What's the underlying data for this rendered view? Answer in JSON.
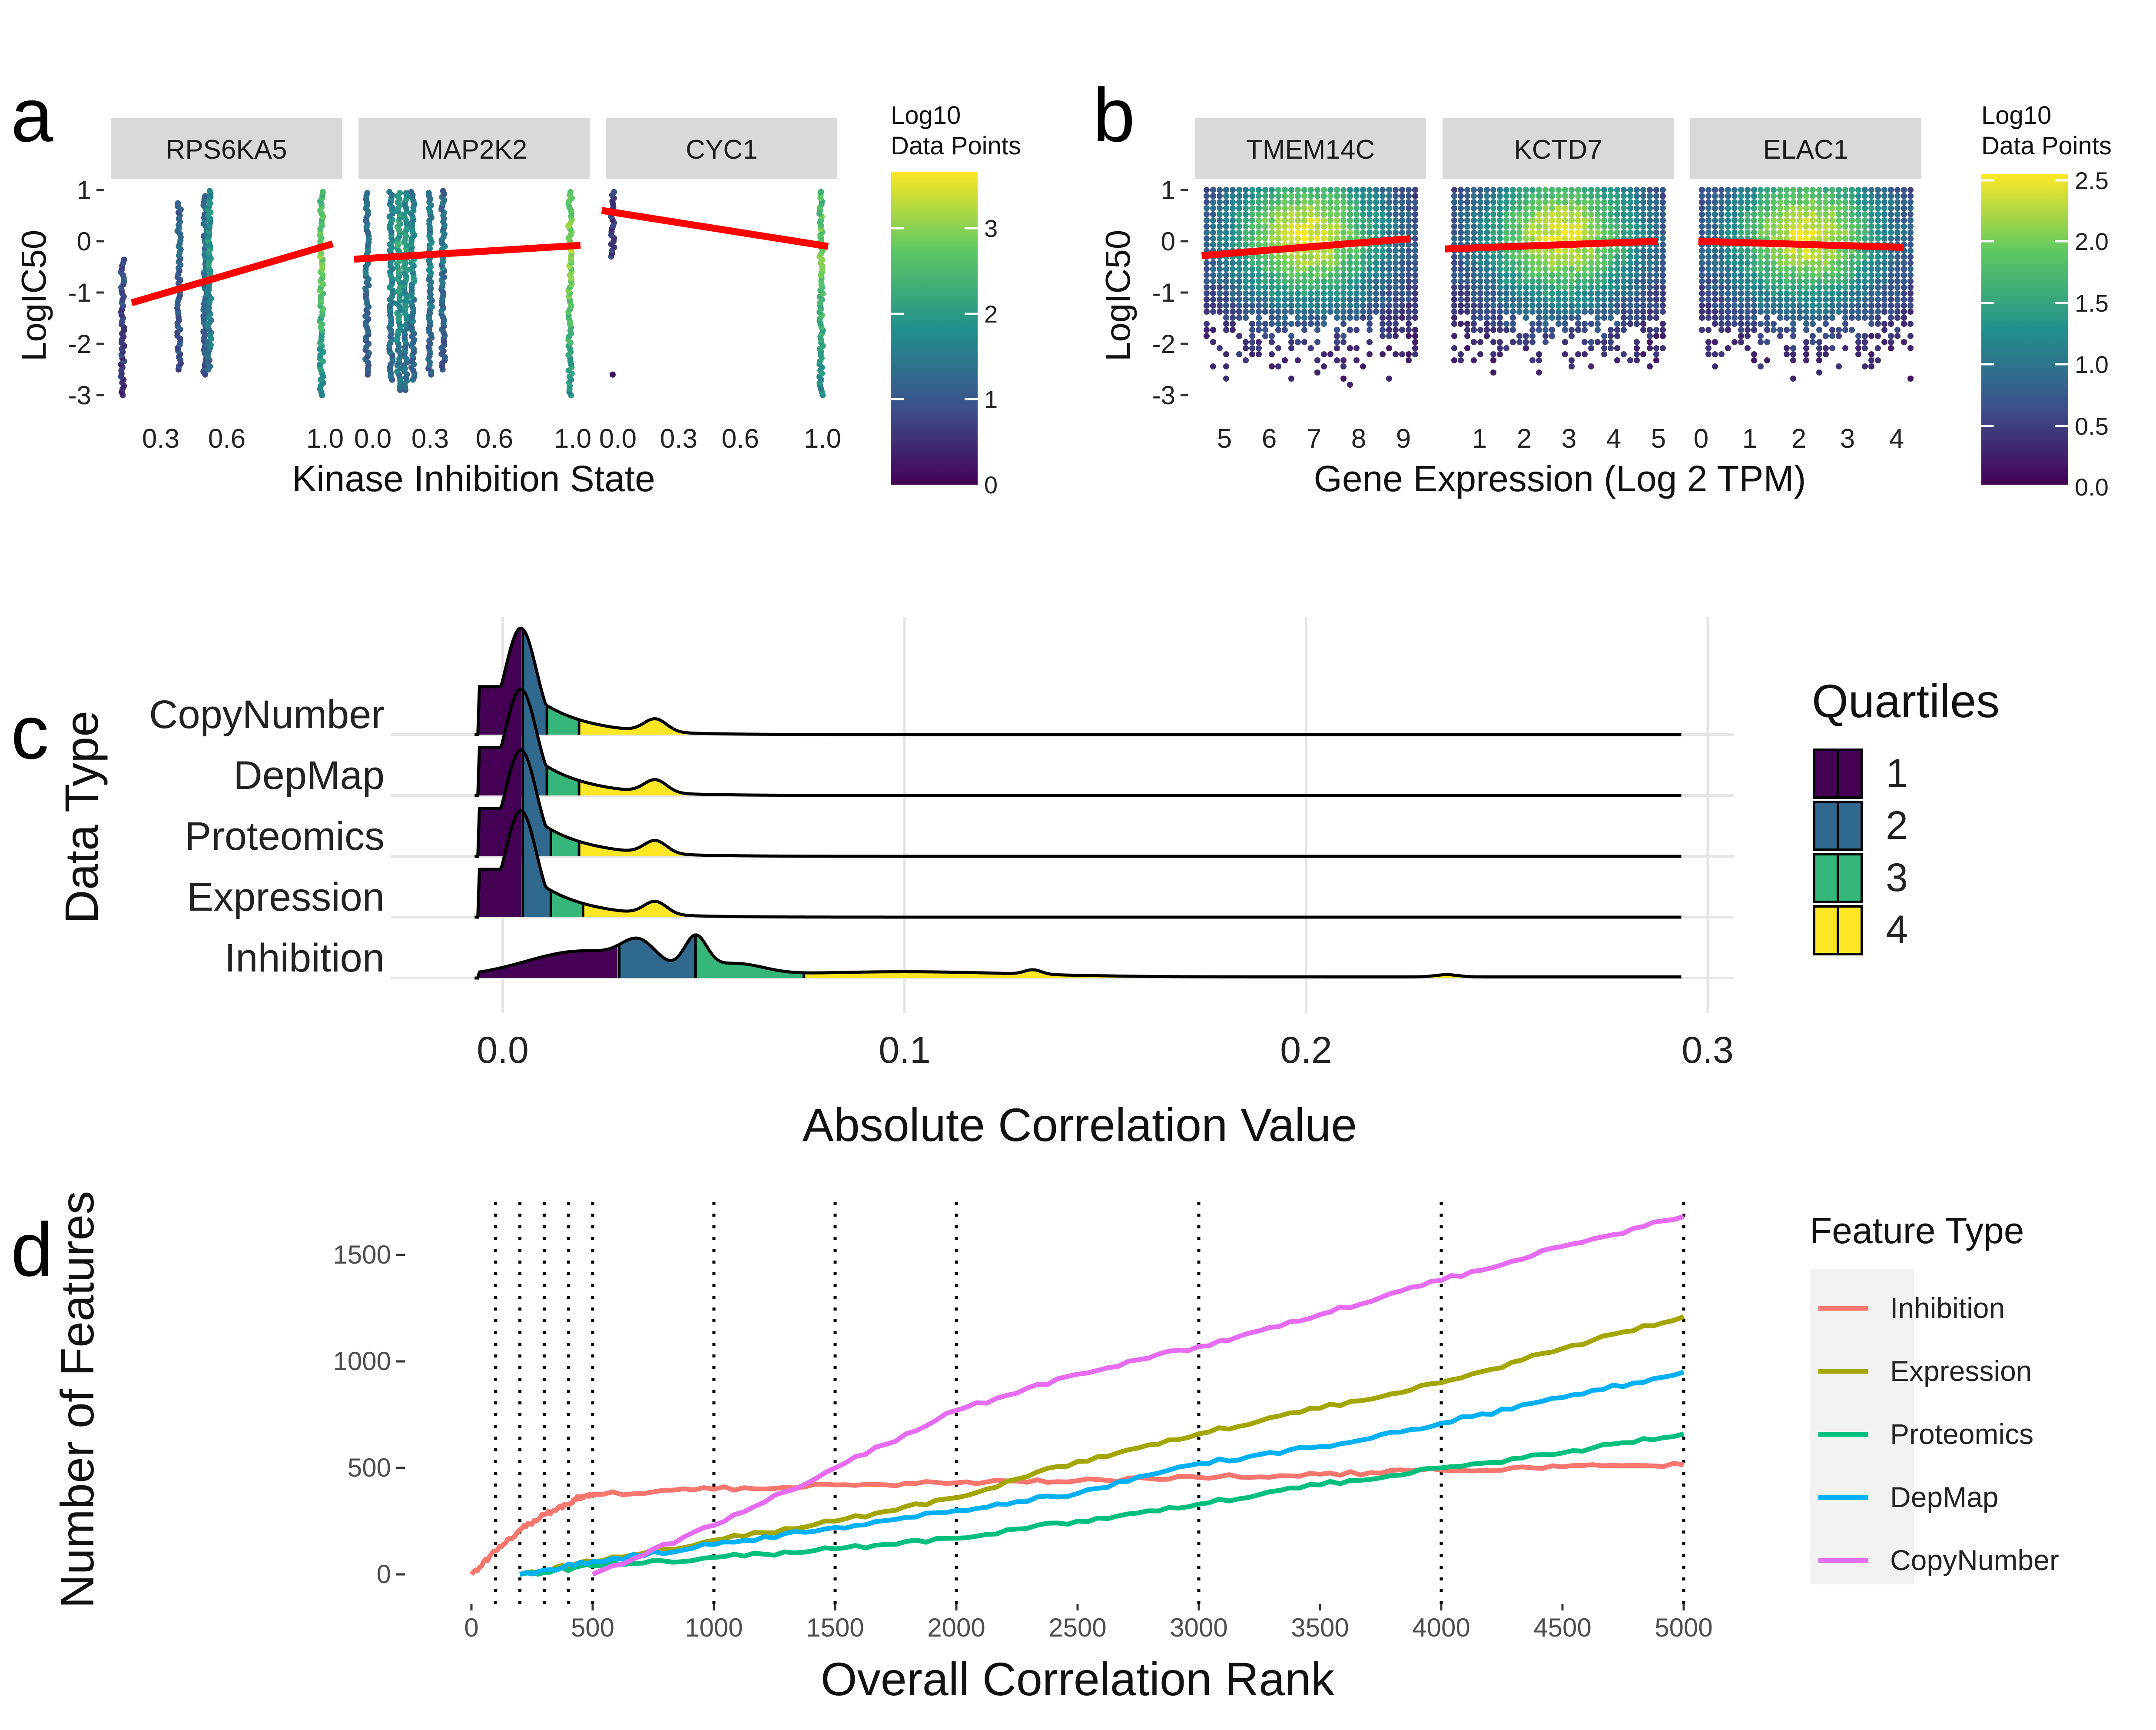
{
  "panel_labels": [
    "a",
    "b",
    "c",
    "d"
  ],
  "chart_data": [
    {
      "id": "a",
      "type": "scatter",
      "subtype": "hexbin",
      "facets": [
        "RPS6KA5",
        "MAP2K2",
        "CYC1"
      ],
      "xlabel": "Kinase Inhibition State",
      "ylabel": "LogIC50",
      "yticks": [
        1,
        0,
        -1,
        -2,
        -3
      ],
      "xticks": [
        [
          "0.3",
          "0.6",
          "1.0"
        ],
        [
          "0.0",
          "0.3",
          "0.6",
          "1.0"
        ],
        [
          "0.0",
          "0.3",
          "0.6",
          "1.0"
        ]
      ],
      "ylim": [
        -3.2,
        1.1
      ],
      "xlim": [
        0.0,
        1.05
      ],
      "trend_lines": [
        {
          "facet": "RPS6KA5",
          "x": [
            0.12,
            1.0
          ],
          "y": [
            -1.2,
            -0.05
          ]
        },
        {
          "facet": "MAP2K2",
          "x": [
            0.0,
            1.0
          ],
          "y": [
            -0.35,
            -0.08
          ]
        },
        {
          "facet": "CYC1",
          "x": [
            0.0,
            1.0
          ],
          "y": [
            0.6,
            -0.1
          ]
        }
      ],
      "colorbar": {
        "title": [
          "Log10",
          "Data Points"
        ],
        "ticks": [
          "3",
          "2",
          "1",
          "0"
        ],
        "min": 0,
        "max": 3.6
      },
      "colors": [
        "#440154",
        "#3b528b",
        "#21908c",
        "#5dc863",
        "#fde725"
      ]
    },
    {
      "id": "b",
      "type": "scatter",
      "subtype": "hexbin",
      "facets": [
        "TMEM14C",
        "KCTD7",
        "ELAC1"
      ],
      "xlabel": "Gene Expression (Log 2 TPM)",
      "ylabel": "LogIC50",
      "yticks": [
        1,
        0,
        -1,
        -2,
        -3
      ],
      "xticks": [
        [
          "5",
          "6",
          "7",
          "8",
          "9"
        ],
        [
          "1",
          "2",
          "3",
          "4",
          "5"
        ],
        [
          "0",
          "1",
          "2",
          "3",
          "4"
        ]
      ],
      "ylim": [
        -3.2,
        1.1
      ],
      "trend_lines": [
        {
          "facet": "TMEM14C",
          "x": [
            4.5,
            9.2
          ],
          "y": [
            -0.28,
            0.05
          ]
        },
        {
          "facet": "KCTD7",
          "x": [
            0.3,
            5.0
          ],
          "y": [
            -0.15,
            0.0
          ]
        },
        {
          "facet": "ELAC1",
          "x": [
            0.0,
            4.2
          ],
          "y": [
            0.0,
            -0.12
          ]
        }
      ],
      "colorbar": {
        "title": [
          "Log10",
          "Data Points"
        ],
        "ticks": [
          "2.5",
          "2.0",
          "1.5",
          "1.0",
          "0.5",
          "0.0"
        ],
        "min": 0,
        "max": 2.5
      }
    },
    {
      "id": "c",
      "type": "area",
      "subtype": "ridgeline",
      "xlabel": "Absolute Correlation Value",
      "ylabel": "Data Type",
      "categories": [
        "CopyNumber",
        "DepMap",
        "Proteomics",
        "Expression",
        "Inhibition"
      ],
      "xticks": [
        "0.0",
        "0.1",
        "0.2",
        "0.3"
      ],
      "xlim": [
        -0.008,
        0.305
      ],
      "quartile_breaks": {
        "CopyNumber": [
          0.005,
          0.011,
          0.019
        ],
        "DepMap": [
          0.005,
          0.011,
          0.019
        ],
        "Proteomics": [
          0.005,
          0.012,
          0.019
        ],
        "Expression": [
          0.005,
          0.012,
          0.02
        ],
        "Inhibition": [
          0.029,
          0.048,
          0.075
        ]
      },
      "legend": {
        "title": "Quartiles",
        "items": [
          "1",
          "2",
          "3",
          "4"
        ],
        "colors": [
          "#440154",
          "#31688e",
          "#35b779",
          "#fde725"
        ]
      }
    },
    {
      "id": "d",
      "type": "line",
      "xlabel": "Overall Correlation Rank",
      "ylabel": "Number of Features",
      "xticks": [
        "0",
        "500",
        "1000",
        "1500",
        "2000",
        "2500",
        "3000",
        "3500",
        "4000",
        "4500",
        "5000"
      ],
      "yticks": [
        "1500",
        "1000",
        "500",
        "0"
      ],
      "xlim": [
        0,
        5000
      ],
      "ylim": [
        -60,
        1750
      ],
      "vlines": [
        100,
        200,
        300,
        400,
        500,
        1000,
        1500,
        2000,
        3000,
        4000,
        5000
      ],
      "legend_title": "Feature Type",
      "series": [
        {
          "name": "Inhibition",
          "color": "#f8766d",
          "x": [
            0,
            100,
            200,
            300,
            400,
            450,
            500,
            1000,
            1500,
            2000,
            2500,
            3000,
            3500,
            4000,
            4500,
            5000
          ],
          "y": [
            0,
            110,
            210,
            280,
            330,
            365,
            375,
            400,
            420,
            430,
            440,
            455,
            470,
            490,
            505,
            515
          ]
        },
        {
          "name": "Expression",
          "color": "#a3a500",
          "x": [
            200,
            500,
            1000,
            1500,
            2000,
            2500,
            3000,
            3500,
            4000,
            4500,
            5000
          ],
          "y": [
            0,
            60,
            160,
            250,
            360,
            530,
            660,
            780,
            900,
            1060,
            1210
          ]
        },
        {
          "name": "Proteomics",
          "color": "#00bf7d",
          "x": [
            200,
            500,
            1000,
            1500,
            2000,
            2500,
            3000,
            3500,
            4000,
            4500,
            5000
          ],
          "y": [
            0,
            40,
            80,
            120,
            170,
            250,
            330,
            420,
            500,
            570,
            660
          ]
        },
        {
          "name": "DepMap",
          "color": "#00b0f6",
          "x": [
            200,
            500,
            1000,
            1500,
            2000,
            2500,
            3000,
            3500,
            4000,
            4500,
            5000
          ],
          "y": [
            0,
            60,
            140,
            220,
            300,
            380,
            520,
            600,
            710,
            830,
            950
          ]
        },
        {
          "name": "CopyNumber",
          "color": "#e76bf3",
          "x": [
            500,
            1000,
            1500,
            2000,
            2500,
            3000,
            3500,
            4000,
            4500,
            5000
          ],
          "y": [
            0,
            230,
            500,
            770,
            940,
            1070,
            1220,
            1380,
            1540,
            1680
          ]
        }
      ]
    }
  ]
}
